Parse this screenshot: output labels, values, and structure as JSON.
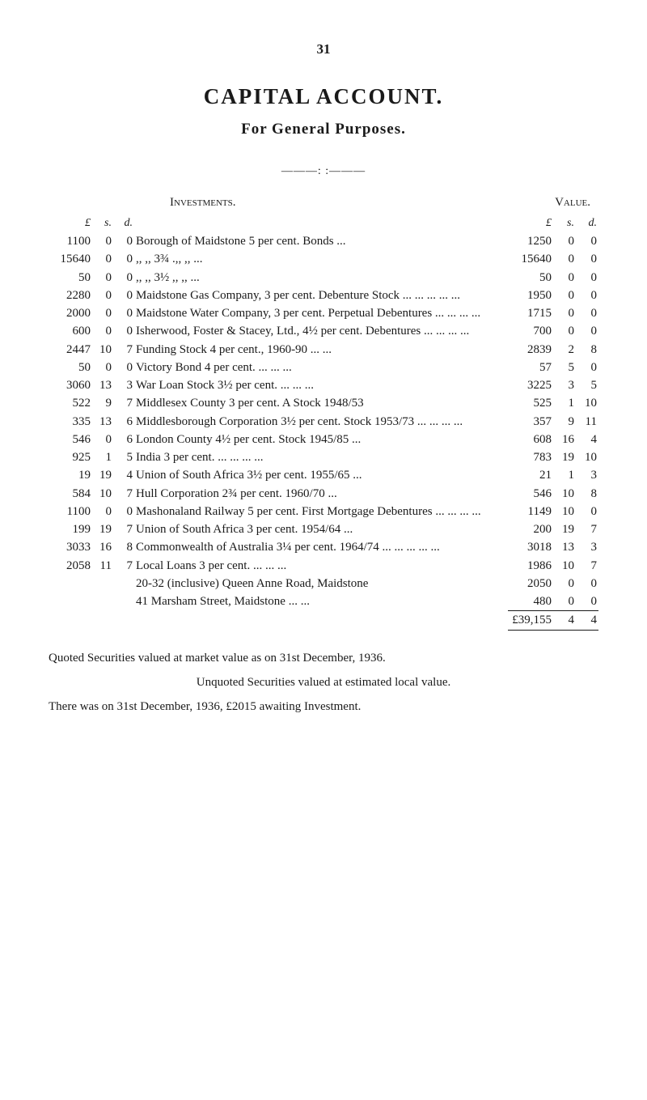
{
  "page_number": "31",
  "title": "CAPITAL ACCOUNT.",
  "subtitle": "For General Purposes.",
  "rule_between": "———: :———",
  "headings": {
    "investments": "Investments.",
    "value": "Value."
  },
  "unit_labels": {
    "pounds": "£",
    "shillings": "s.",
    "pence": "d."
  },
  "rows": [
    {
      "cost": {
        "L": "1100",
        "s": "0",
        "d": "0"
      },
      "desc": "Borough of Maidstone 5 per cent. Bonds   ...",
      "value": {
        "L": "1250",
        "s": "0",
        "d": "0"
      }
    },
    {
      "cost": {
        "L": "15640",
        "s": "0",
        "d": "0"
      },
      "desc": "   ,,             ,,        3¾    .,,        ,,      ...",
      "value": {
        "L": "15640",
        "s": "0",
        "d": "0"
      }
    },
    {
      "cost": {
        "L": "50",
        "s": "0",
        "d": "0"
      },
      "desc": "   ,,             ,,        3½    ,,         ,,      ...",
      "value": {
        "L": "50",
        "s": "0",
        "d": "0"
      }
    },
    {
      "cost": {
        "L": "2280",
        "s": "0",
        "d": "0"
      },
      "desc": "Maidstone Gas Company, 3 per cent. Debenture Stock      ...      ...      ...      ...      ...",
      "value": {
        "L": "1950",
        "s": "0",
        "d": "0"
      }
    },
    {
      "cost": {
        "L": "2000",
        "s": "0",
        "d": "0"
      },
      "desc": "Maidstone Water Company, 3 per cent. Perpetual Debentures ...      ...      ...      ...",
      "value": {
        "L": "1715",
        "s": "0",
        "d": "0"
      }
    },
    {
      "cost": {
        "L": "600",
        "s": "0",
        "d": "0"
      },
      "desc": "Isherwood, Foster & Stacey, Ltd., 4½ per cent. Debentures     ...      ...      ...      ...",
      "value": {
        "L": "700",
        "s": "0",
        "d": "0"
      }
    },
    {
      "cost": {
        "L": "2447",
        "s": "10",
        "d": "7"
      },
      "desc": "Funding Stock 4 per cent., 1960-90 ...      ...",
      "value": {
        "L": "2839",
        "s": "2",
        "d": "8"
      }
    },
    {
      "cost": {
        "L": "50",
        "s": "0",
        "d": "0"
      },
      "desc": "Victory Bond 4 per cent.        ...      ...      ...",
      "value": {
        "L": "57",
        "s": "5",
        "d": "0"
      }
    },
    {
      "cost": {
        "L": "3060",
        "s": "13",
        "d": "3"
      },
      "desc": "War Loan Stock 3½ per cent. ...      ...      ...",
      "value": {
        "L": "3225",
        "s": "3",
        "d": "5"
      }
    },
    {
      "cost": {
        "L": "522",
        "s": "9",
        "d": "7"
      },
      "desc": "Middlesex County 3 per cent. A Stock 1948/53",
      "value": {
        "L": "525",
        "s": "1",
        "d": "10"
      }
    },
    {
      "cost": {
        "L": "335",
        "s": "13",
        "d": "6"
      },
      "desc": "Middlesborough Corporation 3½ per cent. Stock 1953/73        ...      ...      ...      ...",
      "value": {
        "L": "357",
        "s": "9",
        "d": "11"
      }
    },
    {
      "cost": {
        "L": "546",
        "s": "0",
        "d": "6"
      },
      "desc": "London County 4½ per cent. Stock 1945/85 ...",
      "value": {
        "L": "608",
        "s": "16",
        "d": "4"
      }
    },
    {
      "cost": {
        "L": "925",
        "s": "1",
        "d": "5"
      },
      "desc": "India 3 per cent.          ...      ...      ...      ...",
      "value": {
        "L": "783",
        "s": "19",
        "d": "10"
      }
    },
    {
      "cost": {
        "L": "19",
        "s": "19",
        "d": "4"
      },
      "desc": "Union of South Africa 3½ per cent. 1955/65 ...",
      "value": {
        "L": "21",
        "s": "1",
        "d": "3"
      }
    },
    {
      "cost": {
        "L": "584",
        "s": "10",
        "d": "7"
      },
      "desc": "Hull Corporation 2¾ per cent. 1960/70    ...",
      "value": {
        "L": "546",
        "s": "10",
        "d": "8"
      }
    },
    {
      "cost": {
        "L": "1100",
        "s": "0",
        "d": "0"
      },
      "desc": "Mashonaland Railway 5 per cent. First Mortgage Debentures      ...      ...      ...      ...",
      "value": {
        "L": "1149",
        "s": "10",
        "d": "0"
      }
    },
    {
      "cost": {
        "L": "199",
        "s": "19",
        "d": "7"
      },
      "desc": "Union of South Africa 3 per cent. 1954/64 ...",
      "value": {
        "L": "200",
        "s": "19",
        "d": "7"
      }
    },
    {
      "cost": {
        "L": "3033",
        "s": "16",
        "d": "8"
      },
      "desc": "Commonwealth of Australia 3¼ per cent. 1964/74       ...      ...      ...      ...      ...",
      "value": {
        "L": "3018",
        "s": "13",
        "d": "3"
      }
    },
    {
      "cost": {
        "L": "2058",
        "s": "11",
        "d": "7"
      },
      "desc": "Local Loans 3 per cent.       ...      ...      ...",
      "value": {
        "L": "1986",
        "s": "10",
        "d": "7"
      }
    },
    {
      "cost": {
        "L": "",
        "s": "",
        "d": ""
      },
      "desc": "20-32 (inclusive) Queen Anne Road, Maidstone",
      "value": {
        "L": "2050",
        "s": "0",
        "d": "0"
      }
    },
    {
      "cost": {
        "L": "",
        "s": "",
        "d": ""
      },
      "desc": "41 Marsham Street, Maidstone      ...      ...",
      "value": {
        "L": "480",
        "s": "0",
        "d": "0"
      }
    }
  ],
  "total": {
    "label": "£39,155",
    "s": "4",
    "d": "4"
  },
  "footnotes": {
    "line1": "Quoted Securities valued at market value as on 31st December, 1936.",
    "line2": "Unquoted Securities valued at estimated local value.",
    "line3": "There was on 31st December, 1936, £2015 awaiting Investment."
  },
  "colors": {
    "text": "#1a1a1a",
    "background": "#ffffff"
  }
}
